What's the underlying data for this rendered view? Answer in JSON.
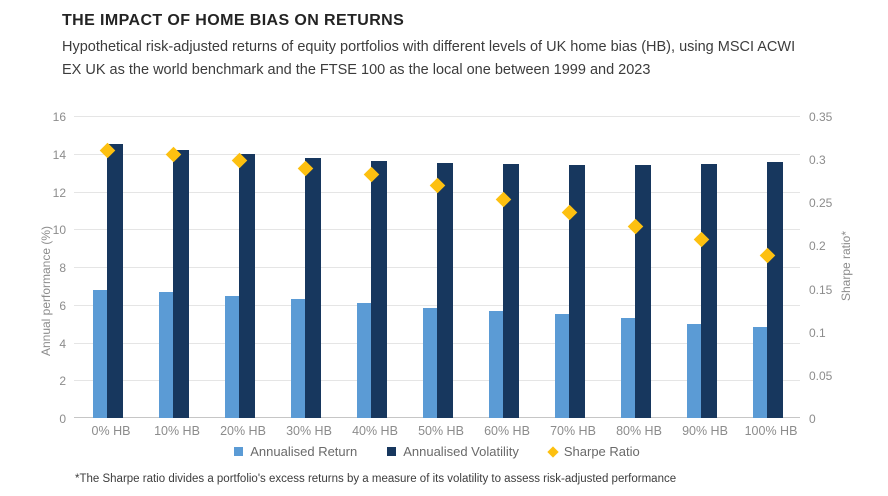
{
  "page": {
    "title": "THE IMPACT OF HOME BIAS ON RETURNS",
    "subtitle": "Hypothetical risk-adjusted returns of equity portfolios with different levels of UK home bias (HB), using MSCI ACWI EX UK as the world benchmark and the FTSE 100 as the local one between 1999 and 2023",
    "footnote": "*The Sharpe ratio divides a portfolio's excess returns by a measure of its volatility to assess risk-adjusted performance"
  },
  "colors": {
    "return_bar": "#5b9bd5",
    "volatility_bar": "#17375e",
    "sharpe_marker": "#fdc010",
    "gridline": "#e5e5e5",
    "axis_line": "#c6c6c6",
    "tick_text": "#8c8c8c",
    "title_text": "#232323",
    "body_text": "#3c3c3c",
    "legend_text": "#6a6a6a"
  },
  "chart_data": {
    "type": "bar",
    "title": "THE IMPACT OF HOME BIAS ON RETURNS",
    "categories": [
      "0% HB",
      "10% HB",
      "20% HB",
      "30% HB",
      "40% HB",
      "50% HB",
      "60% HB",
      "70% HB",
      "80% HB",
      "90% HB",
      "100% HB"
    ],
    "series": [
      {
        "name": "Annualised Return",
        "type": "bar",
        "axis": "left",
        "swatch": "square",
        "color": "#5b9bd5",
        "values": [
          6.8,
          6.65,
          6.45,
          6.3,
          6.1,
          5.85,
          5.65,
          5.5,
          5.3,
          5.0,
          4.8
        ]
      },
      {
        "name": "Annualised Volatility",
        "type": "bar",
        "axis": "left",
        "swatch": "square",
        "color": "#17375e",
        "values": [
          14.5,
          14.2,
          14.0,
          13.8,
          13.6,
          13.5,
          13.45,
          13.4,
          13.4,
          13.45,
          13.55
        ]
      },
      {
        "name": "Sharpe Ratio",
        "type": "scatter",
        "axis": "right",
        "swatch": "diamond",
        "color": "#fdc010",
        "values": [
          0.31,
          0.305,
          0.298,
          0.289,
          0.282,
          0.27,
          0.253,
          0.238,
          0.222,
          0.207,
          0.188
        ]
      }
    ],
    "left_axis": {
      "label": "Annual performance (%)",
      "min": 0,
      "max": 16,
      "ticks": [
        "0",
        "2",
        "4",
        "6",
        "8",
        "10",
        "12",
        "14",
        "16"
      ],
      "tick_values": [
        0,
        2,
        4,
        6,
        8,
        10,
        12,
        14,
        16
      ]
    },
    "right_axis": {
      "label": "Sharpe ratio*",
      "min": 0,
      "max": 0.35,
      "ticks": [
        "0",
        "0.05",
        "0.1",
        "0.15",
        "0.2",
        "0.25",
        "0.3",
        "0.35"
      ],
      "tick_values": [
        0,
        0.05,
        0.1,
        0.15,
        0.2,
        0.25,
        0.3,
        0.35
      ]
    },
    "grid": true,
    "legend_position": "bottom"
  }
}
